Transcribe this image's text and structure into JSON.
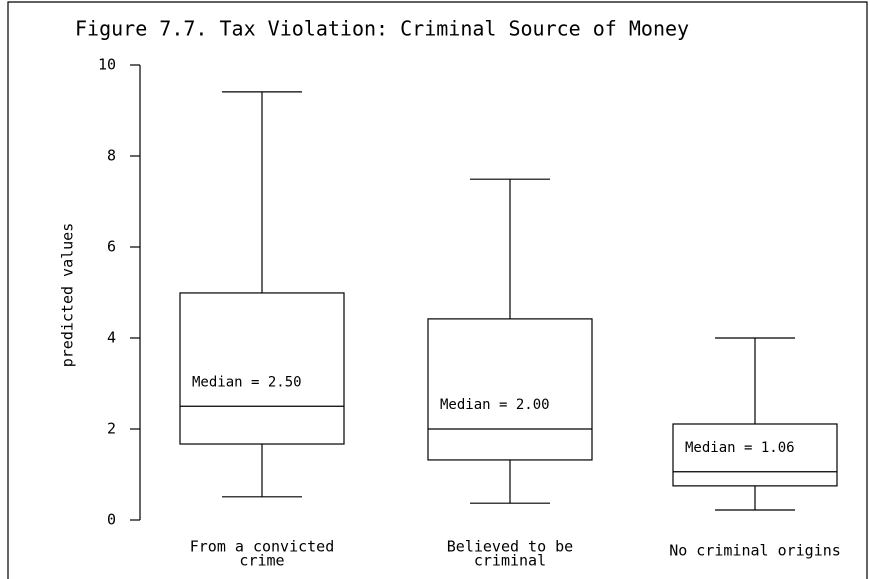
{
  "chart_data": {
    "type": "box",
    "title": "Figure 7.7. Tax Violation: Criminal Source of Money",
    "ylabel": "predicted values",
    "categories": [
      [
        "From a convicted",
        "crime"
      ],
      [
        "Believed to be",
        "criminal"
      ],
      [
        "No criminal origins"
      ]
    ],
    "stats": {
      "low": [
        0.51,
        0.37,
        0.22
      ],
      "q1": [
        1.67,
        1.32,
        0.75
      ],
      "median": [
        2.5,
        2.0,
        1.06
      ],
      "q3": [
        4.99,
        4.42,
        2.11
      ],
      "high": [
        9.41,
        7.49,
        4.0
      ]
    },
    "median_labels": [
      "Median = 2.50",
      "Median = 2.00",
      "Median = 1.06"
    ],
    "color": "#000000",
    "ylim": [
      0,
      10
    ],
    "yticks": [
      0,
      2,
      4,
      6,
      8,
      10
    ]
  }
}
